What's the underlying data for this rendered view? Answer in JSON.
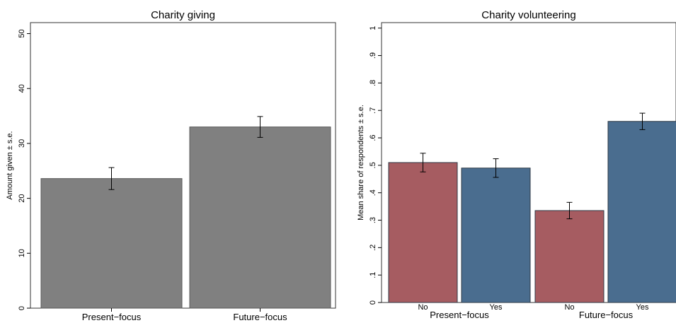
{
  "chart_data": [
    {
      "type": "bar",
      "title": "Charity giving",
      "ylabel": "Amount given ± s.e.",
      "xlabel": "",
      "ylim": [
        0,
        52
      ],
      "yticks": [
        0,
        10,
        20,
        30,
        40,
        50
      ],
      "ytick_labels": [
        "0",
        "10",
        "20",
        "30",
        "40",
        "50"
      ],
      "categories": [
        "Present−focus",
        "Future−focus"
      ],
      "values": [
        23.6,
        33.0
      ],
      "error": [
        2.0,
        1.9
      ],
      "bar_color": "#808080",
      "grid": false,
      "legend": "none"
    },
    {
      "type": "bar",
      "title": "Charity volunteering",
      "ylabel": "Mean share of respondents ± s.e.",
      "xlabel": "",
      "ylim": [
        0,
        1.02
      ],
      "yticks": [
        0,
        0.1,
        0.2,
        0.3,
        0.4,
        0.5,
        0.6,
        0.7,
        0.8,
        0.9,
        1
      ],
      "ytick_labels": [
        "0",
        ".1",
        ".2",
        ".3",
        ".4",
        ".5",
        ".6",
        ".7",
        ".8",
        ".9",
        "1"
      ],
      "groups": [
        "Present−focus",
        "Future−focus"
      ],
      "subcategories": [
        "No",
        "Yes"
      ],
      "series": [
        {
          "group": "Present−focus",
          "values": [
            0.51,
            0.49
          ],
          "error": [
            0.034,
            0.034
          ]
        },
        {
          "group": "Future−focus",
          "values": [
            0.335,
            0.66
          ],
          "error": [
            0.03,
            0.03
          ]
        }
      ],
      "colors": {
        "No": "#a65c61",
        "Yes": "#4a6d8f"
      },
      "grid": false,
      "legend": "none"
    }
  ]
}
